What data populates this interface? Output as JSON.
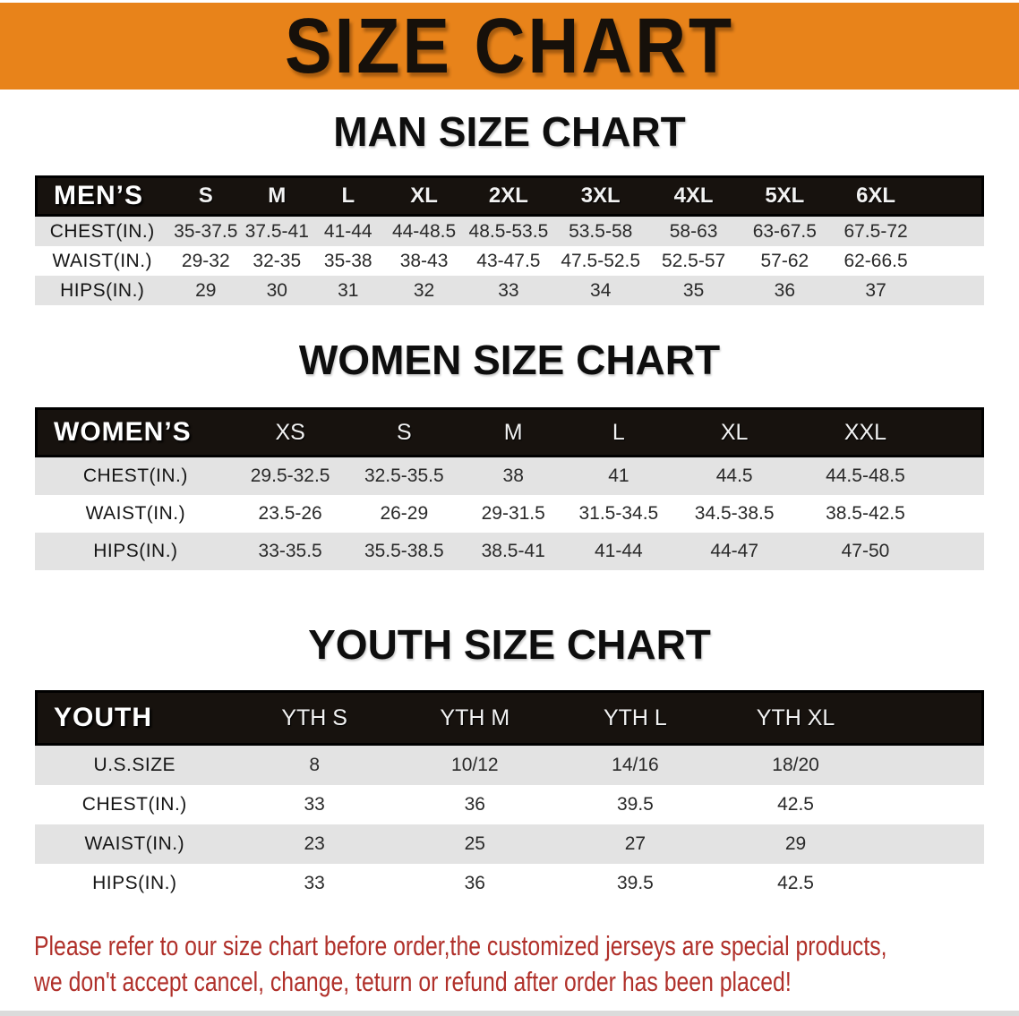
{
  "banner": {
    "title": "SIZE CHART"
  },
  "sections": [
    {
      "id": "men",
      "heading": "MAN SIZE CHART",
      "corner": "MEN’S",
      "columns": [
        "S",
        "M",
        "L",
        "XL",
        "2XL",
        "3XL",
        "4XL",
        "5XL",
        "6XL"
      ],
      "rows": [
        {
          "label": "CHEST(IN.)",
          "values": [
            "35-37.5",
            "37.5-41",
            "41-44",
            "44-48.5",
            "48.5-53.5",
            "53.5-58",
            "58-63",
            "63-67.5",
            "67.5-72"
          ]
        },
        {
          "label": "WAIST(IN.)",
          "values": [
            "29-32",
            "32-35",
            "35-38",
            "38-43",
            "43-47.5",
            "47.5-52.5",
            "52.5-57",
            "57-62",
            "62-66.5"
          ]
        },
        {
          "label": "HIPS(IN.)",
          "values": [
            "29",
            "30",
            "31",
            "32",
            "33",
            "34",
            "35",
            "36",
            "37"
          ]
        }
      ]
    },
    {
      "id": "women",
      "heading": "WOMEN SIZE CHART",
      "corner": "WOMEN’S",
      "columns": [
        "XS",
        "S",
        "M",
        "L",
        "XL",
        "XXL"
      ],
      "rows": [
        {
          "label": "CHEST(IN.)",
          "values": [
            "29.5-32.5",
            "32.5-35.5",
            "38",
            "41",
            "44.5",
            "44.5-48.5"
          ]
        },
        {
          "label": "WAIST(IN.)",
          "values": [
            "23.5-26",
            "26-29",
            "29-31.5",
            "31.5-34.5",
            "34.5-38.5",
            "38.5-42.5"
          ]
        },
        {
          "label": "HIPS(IN.)",
          "values": [
            "33-35.5",
            "35.5-38.5",
            "38.5-41",
            "41-44",
            "44-47",
            "47-50"
          ]
        }
      ]
    },
    {
      "id": "youth",
      "heading": "YOUTH SIZE CHART",
      "corner": "YOUTH",
      "columns": [
        "YTH S",
        "YTH M",
        "YTH L",
        "YTH XL"
      ],
      "rows": [
        {
          "label": "U.S.SIZE",
          "values": [
            "8",
            "10/12",
            "14/16",
            "18/20"
          ]
        },
        {
          "label": "CHEST(IN.)",
          "values": [
            "33",
            "36",
            "39.5",
            "42.5"
          ]
        },
        {
          "label": "WAIST(IN.)",
          "values": [
            "23",
            "25",
            "27",
            "29"
          ]
        },
        {
          "label": "HIPS(IN.)",
          "values": [
            "33",
            "36",
            "39.5",
            "42.5"
          ]
        }
      ]
    }
  ],
  "disclaimer": {
    "line1": "Please refer to our size chart before order,the customized jerseys are special products,",
    "line2": "we don't accept cancel, change, teturn or refund after order has been placed!"
  },
  "colors": {
    "banner_orange": "#E8831A",
    "header_black": "#17120E",
    "stripe_gray": "#E3E3E3",
    "disclaimer_red": "#B0302A"
  }
}
